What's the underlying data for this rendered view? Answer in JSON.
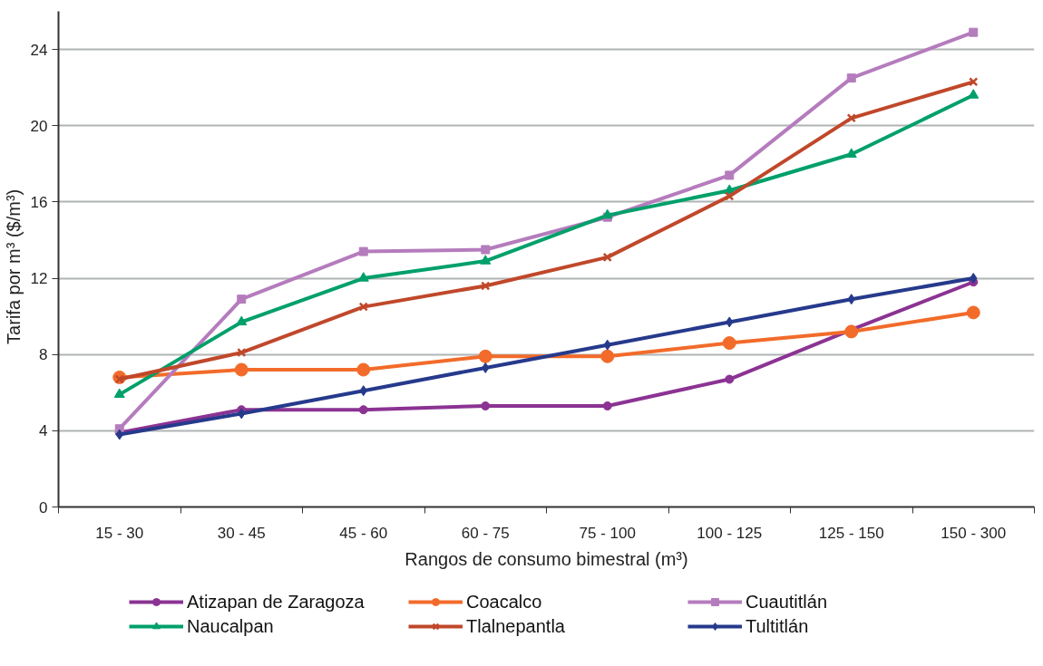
{
  "chart_data": {
    "type": "line",
    "xlabel": "Rangos de consumo bimestral (m³)",
    "ylabel": "Tarifa por m³    ($/m³)",
    "categories": [
      "15 - 30",
      "30 - 45",
      "45 - 60",
      "60 - 75",
      "75 - 100",
      "100 - 125",
      "125 - 150",
      "150 - 300"
    ],
    "ylim": [
      0,
      26
    ],
    "yticks": [
      0,
      4,
      8,
      12,
      16,
      20,
      24
    ],
    "grid": "y",
    "legend": "bottom",
    "line_style": "solid",
    "series": [
      {
        "name": "Atizapan de Zaragoza",
        "color": "#8b3393",
        "marker": "circle",
        "values": [
          3.9,
          5.1,
          5.1,
          5.3,
          5.3,
          6.7,
          9.3,
          11.8
        ]
      },
      {
        "name": "Coacalco",
        "color": "#f26b2a",
        "marker": "circle",
        "values": [
          6.8,
          7.2,
          7.2,
          7.9,
          7.9,
          8.6,
          9.2,
          10.2
        ]
      },
      {
        "name": "Cuautitlán",
        "color": "#b57cbd",
        "marker": "square",
        "values": [
          4.1,
          10.9,
          13.4,
          13.5,
          15.2,
          17.4,
          22.5,
          24.9
        ]
      },
      {
        "name": "Naucalpan",
        "color": "#00a06a",
        "marker": "triangle",
        "values": [
          5.9,
          9.7,
          12.0,
          12.9,
          15.3,
          16.6,
          18.5,
          21.6
        ]
      },
      {
        "name": "Tlalnepantla",
        "color": "#c0482a",
        "marker": "cross",
        "values": [
          6.7,
          8.1,
          10.5,
          11.6,
          13.1,
          16.3,
          20.4,
          22.3
        ]
      },
      {
        "name": "Tultitlán",
        "color": "#263a8c",
        "marker": "diamond",
        "values": [
          3.8,
          4.9,
          6.1,
          7.3,
          8.5,
          9.7,
          10.9,
          12.0
        ]
      }
    ]
  }
}
